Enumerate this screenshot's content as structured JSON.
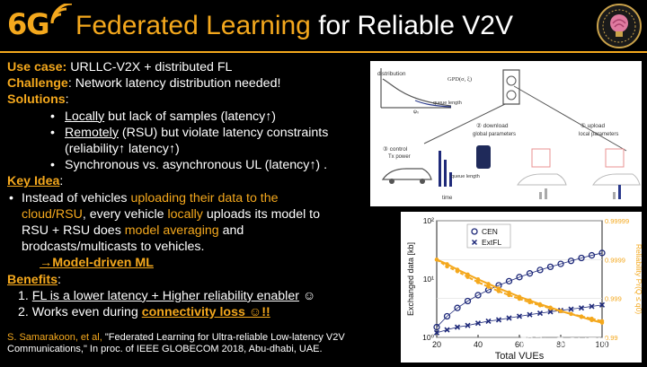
{
  "header": {
    "logo": "6G",
    "title_part1": "Federated Learning",
    "title_part2": " for Reliable V2V"
  },
  "content": {
    "use_case_label": "Use case:",
    "use_case_text": " URLLC-V2X  + distributed FL",
    "challenge_label": "Challenge",
    "challenge_text": ": Network latency distribution needed!",
    "solutions_label": "Solutions",
    "solutions_colon": ":",
    "sol1_a": "Locally",
    "sol1_b": " but lack of samples (latency↑)",
    "sol2_a": "Remotely",
    "sol2_b": " (RSU) but violate latency constraints",
    "sol2_c": "(reliability↑ latency↑)",
    "sol3": "Synchronous vs. asynchronous UL (latency↑) .",
    "key_idea_label": "Key Idea",
    "key_idea_colon": ":",
    "idea_a": "Instead of vehicles ",
    "idea_b": "uploading their data to the",
    "idea_c": "cloud/RSU",
    "idea_d": ", every vehicle ",
    "idea_e": "locally",
    "idea_f": " uploads its model to",
    "idea_g": "RSU  + RSU does ",
    "idea_h": "model averaging",
    "idea_i": " and",
    "idea_j": "brodcasts/multicasts to vehicles.",
    "arrow_text": "→Model-driven ML",
    "benefits_label": "Benefits",
    "benefits_colon": ":",
    "ben1_num": "1.  ",
    "ben1_a": "FL is a lower latency + Higher reliability enabler",
    "ben1_b": " ☺",
    "ben2_num": "2.  Works even during ",
    "ben2_a": "connectivity loss ☺!!"
  },
  "citation": {
    "name": "S. Samarakoon, et al, ",
    "text": "\"Federated Learning for Ultra-reliable Low-latency V2V Communications,\" In proc. of IEEE GLOBECOM 2018, Abu-dhabi, UAE."
  },
  "diagram": {
    "distribution": "distribution",
    "gpd": "GPD(σ, ξ)",
    "queue_length": "queue length",
    "psi": "ψ₀",
    "download": "② download",
    "download_sub": "global parameters",
    "upload": "① upload",
    "upload_sub": "local parameters",
    "control": "③ control",
    "control_sub": "Tx power",
    "time": "time",
    "queue_length2": "queue length"
  },
  "chart_data": {
    "type": "line",
    "x": [
      20,
      25,
      30,
      35,
      40,
      45,
      50,
      55,
      60,
      65,
      70,
      75,
      80,
      85,
      90,
      95,
      100
    ],
    "series": [
      {
        "name": "CEN",
        "axis": "left",
        "marker": "circle",
        "values": [
          1.5,
          2.3,
          3.2,
          4.2,
          5.3,
          6.5,
          7.8,
          9.2,
          10.8,
          12.5,
          14.3,
          16.2,
          18.2,
          20.5,
          23,
          25.5,
          28
        ]
      },
      {
        "name": "ExtFL",
        "axis": "left",
        "marker": "x",
        "values": [
          1.2,
          1.35,
          1.5,
          1.6,
          1.75,
          1.9,
          2.0,
          2.15,
          2.3,
          2.45,
          2.6,
          2.75,
          2.9,
          3.05,
          3.2,
          3.4,
          3.6
        ]
      },
      {
        "name": "",
        "axis": "right",
        "marker": "dot",
        "values": [
          0.9999,
          0.99987,
          0.99982,
          0.99976,
          0.99968,
          0.99958,
          0.99945,
          0.9993,
          0.9991,
          0.99888,
          0.9986,
          0.9983,
          0.9979,
          0.9975,
          0.997,
          0.9964,
          0.9958
        ]
      },
      {
        "name": "",
        "axis": "right",
        "marker": "dot",
        "values": [
          0.9999,
          0.99985,
          0.9998,
          0.99972,
          0.99962,
          0.9995,
          0.99935,
          0.99918,
          0.99898,
          0.99875,
          0.9985,
          0.9982,
          0.99788,
          0.99752,
          0.99712,
          0.9967,
          0.9962
        ]
      }
    ],
    "xlabel": "Total VUEs",
    "ylabel_left": "Exchanged data [kb]",
    "ylabel_right": "Reliability Pr(Q ≤ q0)",
    "xlim": [
      20,
      100
    ],
    "ylim_left": [
      1,
      100
    ],
    "ylim_left_scale": "log",
    "right_ticks": [
      "0.99999",
      "0.9999",
      "0.999",
      "0.99"
    ],
    "x_ticks": [
      "20",
      "40",
      "60",
      "80",
      "100"
    ],
    "left_ticks": [
      "10⁰",
      "10¹",
      "10²"
    ],
    "colors": {
      "left": "#1f2a7a",
      "right": "#f4a81d"
    },
    "legend_position": "top-left"
  },
  "watermark": "知乎 @CHEN"
}
